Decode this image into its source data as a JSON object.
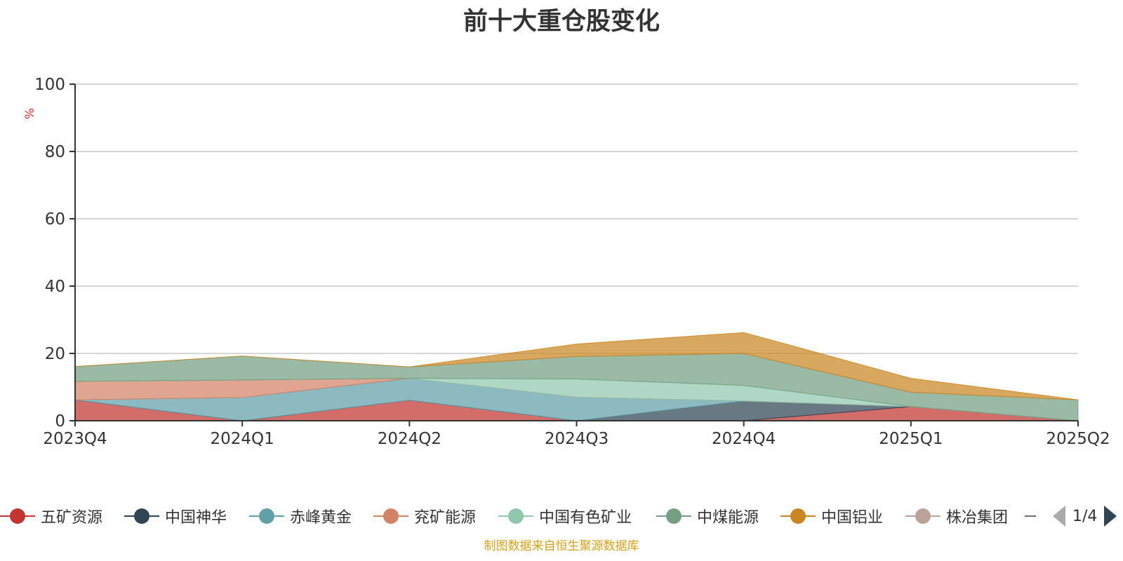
{
  "title": "前十大重仓股变化",
  "source_note": "制图数据来自恒生聚源数据库",
  "pager": {
    "text": "1/4"
  },
  "colors": {
    "五矿资源": "#c23531",
    "中国神华": "#2f4554",
    "赤峰黄金": "#61a0a8",
    "兖矿能源": "#d48265",
    "中国有色矿业": "#91c7ae",
    "中煤能源": "#749f83",
    "中国铝业": "#ca8622",
    "株冶集团": "#bda29a",
    "more": "#6e7074",
    "other": "#c4ccd3"
  },
  "chart_data": {
    "type": "area",
    "stacked": true,
    "title": "前十大重仓股变化",
    "ylabel": "%",
    "ylim": [
      0,
      100
    ],
    "yticks": [
      0,
      20,
      40,
      60,
      80,
      100
    ],
    "grid": true,
    "legend_position": "bottom",
    "categories": [
      "2023Q4",
      "2024Q1",
      "2024Q2",
      "2024Q3",
      "2024Q4",
      "2025Q1",
      "2025Q2"
    ],
    "series": [
      {
        "name": "五矿资源",
        "values": [
          6.2,
          0,
          6.1,
          0,
          0,
          4.2,
          0
        ]
      },
      {
        "name": "中国神华",
        "values": [
          0,
          0,
          0,
          0,
          5.9,
          0,
          0
        ]
      },
      {
        "name": "赤峰黄金",
        "values": [
          0,
          6.9,
          6.5,
          7.0,
          0,
          0,
          0
        ]
      },
      {
        "name": "兖矿能源",
        "values": [
          5.5,
          5.2,
          0,
          0,
          0,
          0,
          0
        ]
      },
      {
        "name": "中国有色矿业",
        "values": [
          0,
          0,
          0,
          5.4,
          4.6,
          0,
          0
        ]
      },
      {
        "name": "中煤能源",
        "values": [
          4.4,
          7.1,
          3.4,
          6.7,
          9.5,
          4.3,
          6.2
        ]
      },
      {
        "name": "中国铝业",
        "values": [
          0,
          0,
          0,
          3.7,
          6.2,
          4.1,
          0
        ]
      },
      {
        "name": "株冶集团"
      },
      {
        "name": ""
      }
    ]
  }
}
